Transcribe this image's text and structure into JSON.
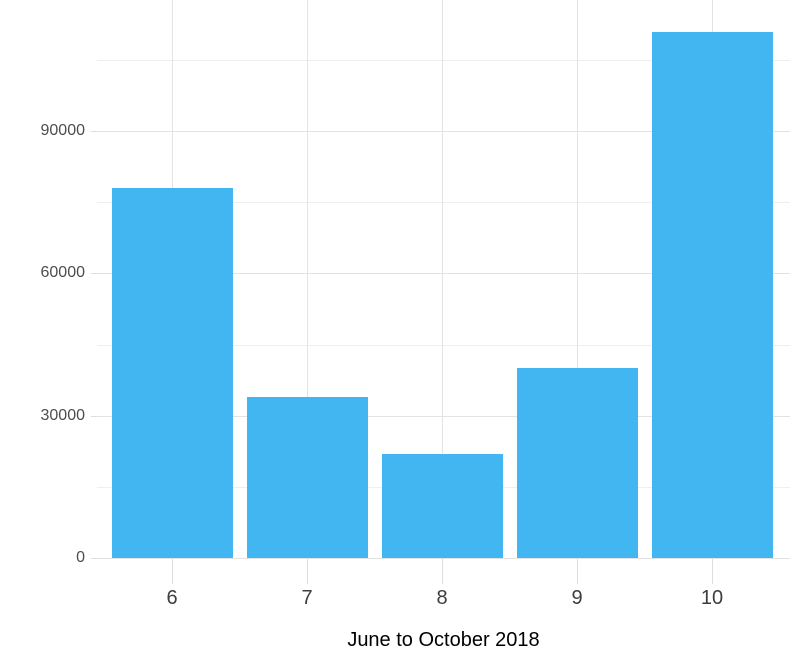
{
  "chart_data": {
    "type": "bar",
    "title": "",
    "xlabel": "June to October 2018",
    "ylabel": "",
    "categories": [
      "6",
      "7",
      "8",
      "9",
      "10"
    ],
    "values": [
      78000,
      34000,
      22000,
      40000,
      111000
    ],
    "ylim": [
      0,
      117650
    ],
    "y_major_ticks": [
      0,
      30000,
      60000,
      90000
    ],
    "y_tick_labels": [
      "0",
      "30000",
      "60000",
      "90000"
    ],
    "y_minor_ticks": [
      15000,
      45000,
      75000,
      105000
    ],
    "grid": "horizontal major+minor, vertical major at bar centers",
    "legend_position": "none",
    "colors": {
      "bar_fill": "#41b6f1",
      "grid_major": "#e3e3e3",
      "grid_minor": "#efefef",
      "axis_tick": "#dedede",
      "axis_text": "#4d4d4d",
      "axis_title": "#000000",
      "background": "#ffffff"
    }
  }
}
